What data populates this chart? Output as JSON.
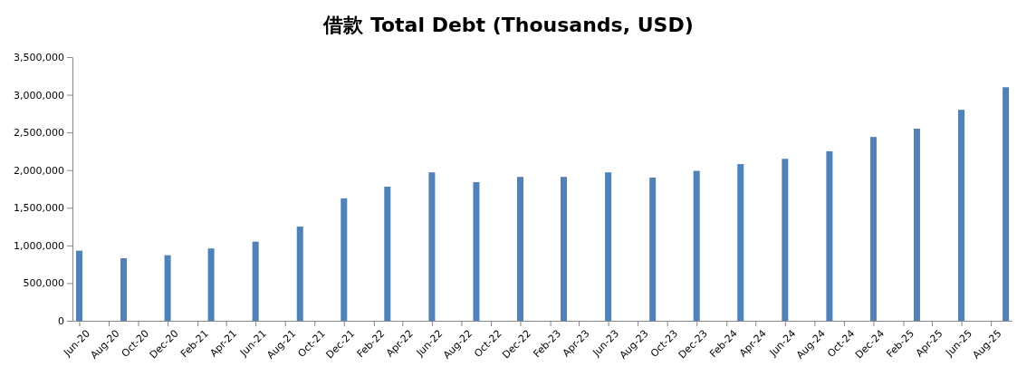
{
  "chart_data": {
    "type": "bar",
    "title": "借款 Total Debt (Thousands, USD)",
    "x": [
      "2020-06",
      "2020-09",
      "2020-12",
      "2021-03",
      "2021-06",
      "2021-09",
      "2021-12",
      "2022-03",
      "2022-06",
      "2022-09",
      "2022-12",
      "2023-03",
      "2023-06",
      "2023-09",
      "2023-12",
      "2024-03",
      "2024-06",
      "2024-09",
      "2024-12",
      "2025-03",
      "2025-06",
      "2025-09"
    ],
    "values": [
      930000,
      830000,
      870000,
      960000,
      1050000,
      1250000,
      1625000,
      1780000,
      1970000,
      1840000,
      1910000,
      1910000,
      1970000,
      1900000,
      1990000,
      2080000,
      2150000,
      2250000,
      2440000,
      2550000,
      2800000,
      3100000
    ],
    "color": "#4f81bd",
    "xlim": [
      "2020-05-18",
      "2025-09-13"
    ],
    "xticks": [
      {
        "value": "2020-06",
        "label": "Jun-20"
      },
      {
        "value": "2020-08",
        "label": "Aug-20"
      },
      {
        "value": "2020-10",
        "label": "Oct-20"
      },
      {
        "value": "2020-12",
        "label": "Dec-20"
      },
      {
        "value": "2021-02",
        "label": "Feb-21"
      },
      {
        "value": "2021-04",
        "label": "Apr-21"
      },
      {
        "value": "2021-06",
        "label": "Jun-21"
      },
      {
        "value": "2021-08",
        "label": "Aug-21"
      },
      {
        "value": "2021-10",
        "label": "Oct-21"
      },
      {
        "value": "2021-12",
        "label": "Dec-21"
      },
      {
        "value": "2022-02",
        "label": "Feb-22"
      },
      {
        "value": "2022-04",
        "label": "Apr-22"
      },
      {
        "value": "2022-06",
        "label": "Jun-22"
      },
      {
        "value": "2022-08",
        "label": "Aug-22"
      },
      {
        "value": "2022-10",
        "label": "Oct-22"
      },
      {
        "value": "2022-12",
        "label": "Dec-22"
      },
      {
        "value": "2023-02",
        "label": "Feb-23"
      },
      {
        "value": "2023-04",
        "label": "Apr-23"
      },
      {
        "value": "2023-06",
        "label": "Jun-23"
      },
      {
        "value": "2023-08",
        "label": "Aug-23"
      },
      {
        "value": "2023-10",
        "label": "Oct-23"
      },
      {
        "value": "2023-12",
        "label": "Dec-23"
      },
      {
        "value": "2024-02",
        "label": "Feb-24"
      },
      {
        "value": "2024-04",
        "label": "Apr-24"
      },
      {
        "value": "2024-06",
        "label": "Jun-24"
      },
      {
        "value": "2024-08",
        "label": "Aug-24"
      },
      {
        "value": "2024-10",
        "label": "Oct-24"
      },
      {
        "value": "2024-12",
        "label": "Dec-24"
      },
      {
        "value": "2025-02",
        "label": "Feb-25"
      },
      {
        "value": "2025-04",
        "label": "Apr-25"
      },
      {
        "value": "2025-06",
        "label": "Jun-25"
      },
      {
        "value": "2025-08",
        "label": "Aug-25"
      }
    ],
    "ylim": [
      0,
      3500000
    ],
    "yticks": [
      {
        "value": 0,
        "label": "0"
      },
      {
        "value": 500000,
        "label": "500,000"
      },
      {
        "value": 1000000,
        "label": "1,000,000"
      },
      {
        "value": 1500000,
        "label": "1,500,000"
      },
      {
        "value": 2000000,
        "label": "2,000,000"
      },
      {
        "value": 2500000,
        "label": "2,500,000"
      },
      {
        "value": 3000000,
        "label": "3,000,000"
      },
      {
        "value": 3500000,
        "label": "3,500,000"
      }
    ],
    "grid": false
  }
}
